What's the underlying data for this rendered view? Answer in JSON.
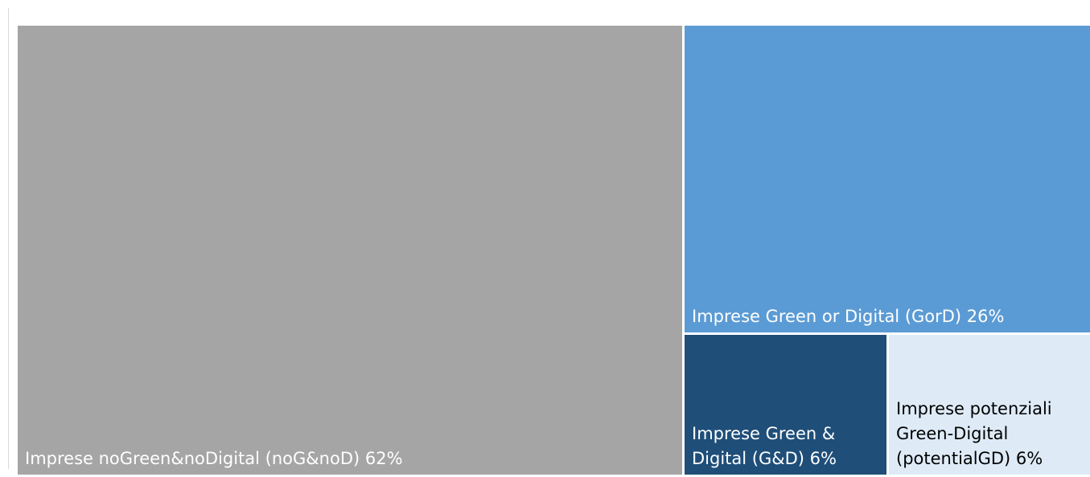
{
  "chart_data": {
    "type": "treemap",
    "title": "",
    "items": [
      {
        "key": "noGnoD",
        "label": "Imprese noGreen&noDigital (noG&noD) 62%",
        "value": 62,
        "color": "#a5a5a5",
        "text_color": "#ffffff"
      },
      {
        "key": "GorD",
        "label": "Imprese Green or Digital (GorD) 26%",
        "value": 26,
        "color": "#5b9bd5",
        "text_color": "#ffffff"
      },
      {
        "key": "GandD",
        "label": "Imprese Green & Digital (G&D) 6%",
        "value": 6,
        "color": "#1f4e79",
        "text_color": "#ffffff"
      },
      {
        "key": "potentialGD",
        "label": "Imprese potenziali Green-Digital (potentialGD) 6%",
        "value": 6,
        "color": "#deebf7",
        "text_color": "#000000"
      }
    ]
  }
}
